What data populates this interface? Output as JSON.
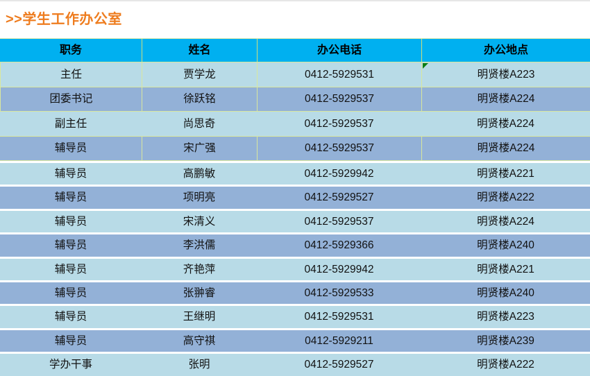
{
  "page": {
    "title": ">>学生工作办公室"
  },
  "table": {
    "columns": [
      "职务",
      "姓名",
      "办公电话",
      "办公地点"
    ],
    "rows": [
      {
        "position": "主任",
        "name": "贾学龙",
        "phone": "0412-5929531",
        "location": "明贤楼A223",
        "marker": "error-indicator"
      },
      {
        "position": "团委书记",
        "name": "徐跃铭",
        "phone": "0412-5929537",
        "location": "明贤楼A224"
      },
      {
        "position": "副主任",
        "name": "尚思奇",
        "phone": "0412-5929537",
        "location": "明贤楼A224"
      },
      {
        "position": "辅导员",
        "name": "宋广强",
        "phone": "0412-5929537",
        "location": "明贤楼A224"
      },
      {
        "position": "辅导员",
        "name": "高鹏敏",
        "phone": "0412-5929942",
        "location": "明贤楼A221"
      },
      {
        "position": "辅导员",
        "name": "项明亮",
        "phone": "0412-5929527",
        "location": "明贤楼A222"
      },
      {
        "position": "辅导员",
        "name": "宋清义",
        "phone": "0412-5929537",
        "location": "明贤楼A224"
      },
      {
        "position": "辅导员",
        "name": "李洪儒",
        "phone": "0412-5929366",
        "location": "明贤楼A240"
      },
      {
        "position": "辅导员",
        "name": "齐艳萍",
        "phone": "0412-5929942",
        "location": "明贤楼A221"
      },
      {
        "position": "辅导员",
        "name": "张翀睿",
        "phone": "0412-5929533",
        "location": "明贤楼A240"
      },
      {
        "position": "辅导员",
        "name": "王继明",
        "phone": "0412-5929531",
        "location": "明贤楼A223"
      },
      {
        "position": "辅导员",
        "name": "高守祺",
        "phone": "0412-5929211",
        "location": "明贤楼A239"
      },
      {
        "position": "学办干事",
        "name": "张明",
        "phone": "0412-5929527",
        "location": "明贤楼A222"
      }
    ],
    "colors": {
      "header_bg": "#00b0f0",
      "row_light": "#b8dbe7",
      "row_dark": "#93b1d7",
      "grid_border": "#d9e79e",
      "title_orange": "#ee7c1e",
      "marker_green": "#0c7d12"
    }
  }
}
